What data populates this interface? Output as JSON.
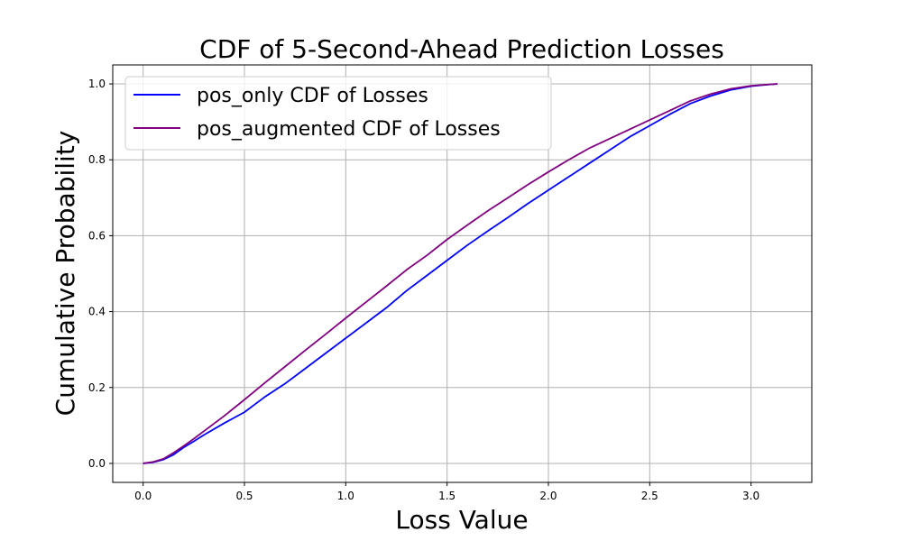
{
  "chart_data": {
    "type": "line",
    "title": "CDF of 5-Second-Ahead Prediction Losses",
    "xlabel": "Loss Value",
    "ylabel": "Cumulative Probability",
    "xlim": [
      -0.15,
      3.3
    ],
    "ylim": [
      -0.05,
      1.05
    ],
    "xticks": [
      0.0,
      0.5,
      1.0,
      1.5,
      2.0,
      2.5,
      3.0
    ],
    "xtick_labels": [
      "0.0",
      "0.5",
      "1.0",
      "1.5",
      "2.0",
      "2.5",
      "3.0"
    ],
    "yticks": [
      0.0,
      0.2,
      0.4,
      0.6,
      0.8,
      1.0
    ],
    "ytick_labels": [
      "0.0",
      "0.2",
      "0.4",
      "0.6",
      "0.8",
      "1.0"
    ],
    "grid": true,
    "legend_position": "upper-left",
    "series": [
      {
        "name": "pos_only CDF of Losses",
        "color": "#0000ff",
        "x": [
          0.0,
          0.05,
          0.1,
          0.15,
          0.2,
          0.25,
          0.3,
          0.4,
          0.5,
          0.55,
          0.6,
          0.7,
          0.8,
          0.9,
          1.0,
          1.1,
          1.2,
          1.3,
          1.4,
          1.5,
          1.6,
          1.7,
          1.8,
          1.9,
          2.0,
          2.1,
          2.2,
          2.3,
          2.4,
          2.5,
          2.6,
          2.7,
          2.8,
          2.9,
          3.0,
          3.1,
          3.13
        ],
        "y": [
          0.0,
          0.003,
          0.01,
          0.023,
          0.042,
          0.058,
          0.075,
          0.106,
          0.135,
          0.155,
          0.175,
          0.21,
          0.25,
          0.29,
          0.33,
          0.37,
          0.41,
          0.455,
          0.495,
          0.535,
          0.575,
          0.612,
          0.648,
          0.685,
          0.72,
          0.755,
          0.79,
          0.825,
          0.86,
          0.89,
          0.92,
          0.948,
          0.968,
          0.984,
          0.994,
          0.999,
          1.0
        ]
      },
      {
        "name": "pos_augmented CDF of Losses",
        "color": "#800080",
        "x": [
          0.0,
          0.05,
          0.1,
          0.15,
          0.2,
          0.25,
          0.3,
          0.4,
          0.5,
          0.6,
          0.7,
          0.8,
          0.9,
          1.0,
          1.1,
          1.2,
          1.3,
          1.4,
          1.5,
          1.6,
          1.7,
          1.8,
          1.9,
          2.0,
          2.1,
          2.2,
          2.3,
          2.4,
          2.5,
          2.6,
          2.7,
          2.8,
          2.9,
          3.0,
          3.1,
          3.13
        ],
        "y": [
          0.0,
          0.004,
          0.012,
          0.028,
          0.046,
          0.065,
          0.085,
          0.125,
          0.168,
          0.212,
          0.255,
          0.298,
          0.34,
          0.383,
          0.425,
          0.467,
          0.51,
          0.548,
          0.59,
          0.628,
          0.665,
          0.7,
          0.735,
          0.768,
          0.8,
          0.83,
          0.855,
          0.88,
          0.905,
          0.93,
          0.955,
          0.973,
          0.987,
          0.995,
          0.999,
          1.0
        ]
      }
    ]
  }
}
